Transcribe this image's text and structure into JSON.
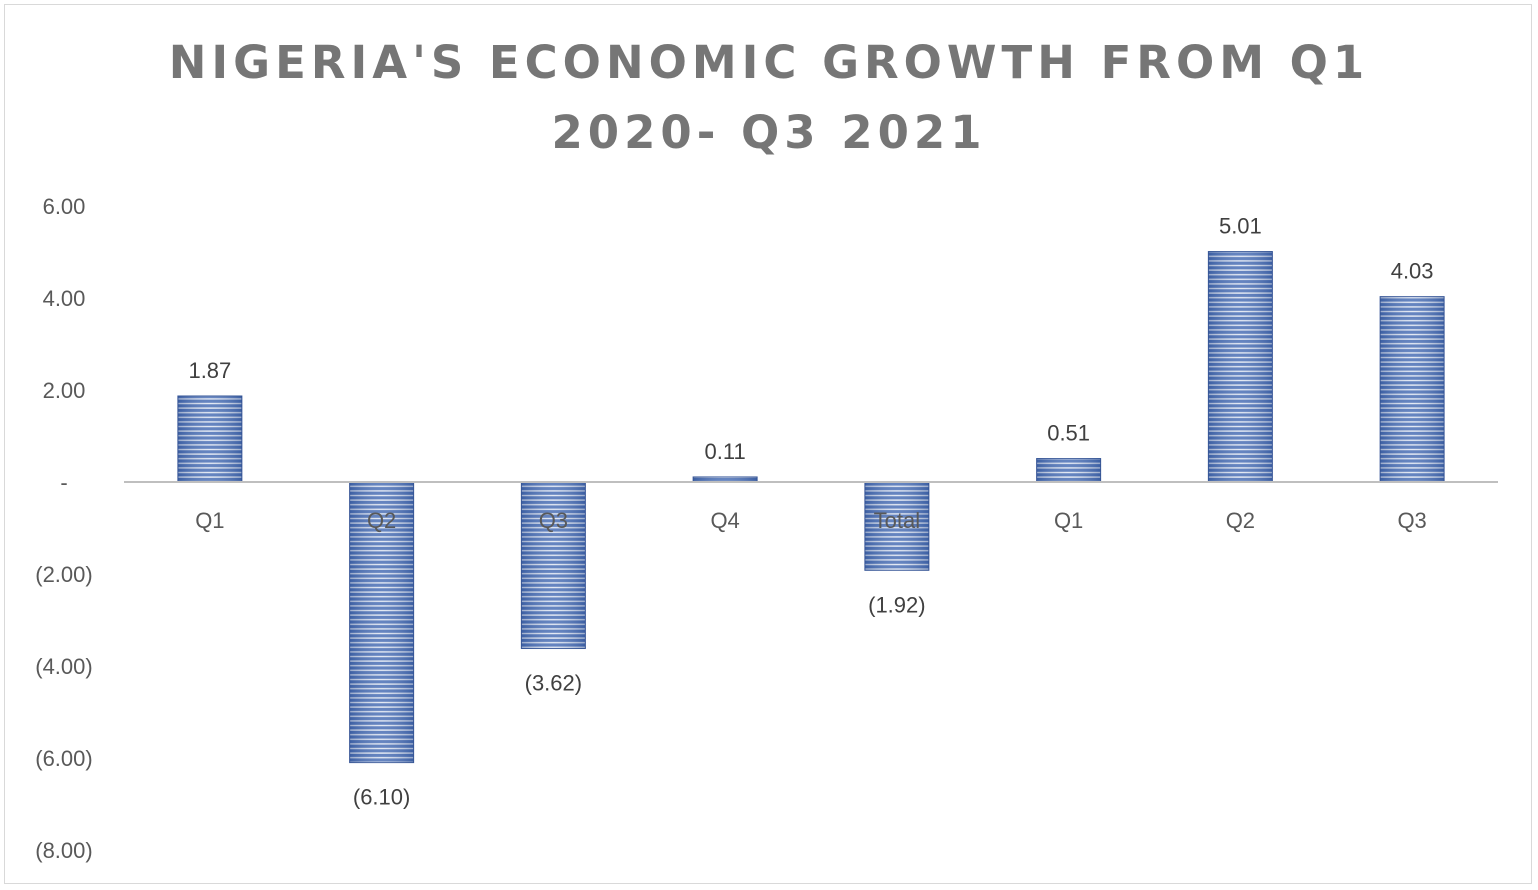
{
  "chart_data": {
    "type": "bar",
    "title_lines": [
      "NIGERIA'S ECONOMIC GROWTH FROM Q1",
      "2020- Q3 2021"
    ],
    "categories": [
      "Q1",
      "Q2",
      "Q3",
      "Q4",
      "Total",
      "Q1",
      "Q2",
      "Q3"
    ],
    "values": [
      1.87,
      -6.1,
      -3.62,
      0.11,
      -1.92,
      0.51,
      5.01,
      4.03
    ],
    "data_labels": [
      "1.87",
      "(6.10)",
      "(3.62)",
      "0.11",
      "(1.92)",
      "0.51",
      "5.01",
      "4.03"
    ],
    "y_ticks": [
      6,
      4,
      2,
      0,
      -2,
      -4,
      -6,
      -8
    ],
    "y_tick_labels": [
      "6.00",
      "4.00",
      "2.00",
      "-",
      "(2.00)",
      "(4.00)",
      "(6.00)",
      "(8.00)"
    ],
    "ylim": [
      -8,
      6
    ],
    "grid": false,
    "legend": "none",
    "bar_color": "#4a6fb5",
    "bar_stripe_color": "#ffffff",
    "axis_color": "#bfbfbf"
  }
}
